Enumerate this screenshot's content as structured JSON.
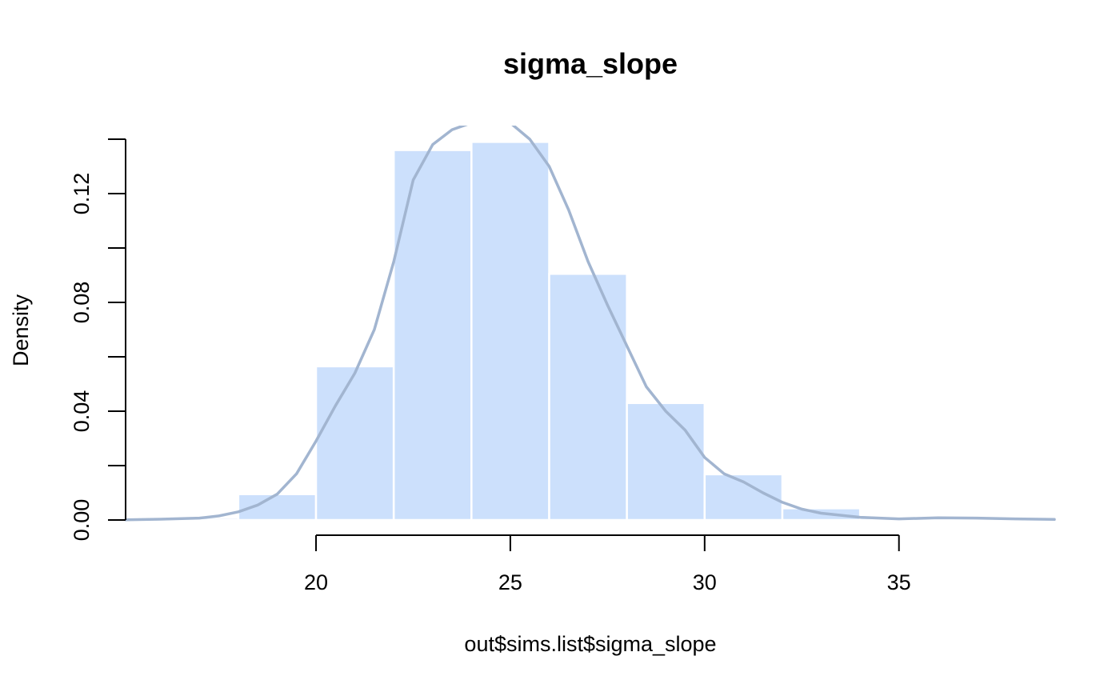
{
  "chart_data": {
    "type": "histogram",
    "title": "sigma_slope",
    "xlabel": "out$sims.list$sigma_slope",
    "ylabel": "Density",
    "xlim": [
      15.1,
      39.0
    ],
    "ylim": [
      0,
      0.14
    ],
    "x_ticks": [
      20,
      25,
      30,
      35
    ],
    "x_tick_labels": [
      "20",
      "25",
      "30",
      "35"
    ],
    "y_ticks": [
      0,
      0.02,
      0.04,
      0.06,
      0.08,
      0.1,
      0.12,
      0.14
    ],
    "y_tick_labels": [
      "0.00",
      "",
      "0.04",
      "",
      "0.08",
      "",
      "0.12",
      ""
    ],
    "bins": [
      {
        "start": 16,
        "end": 18,
        "density": 0.0008
      },
      {
        "start": 18,
        "end": 20,
        "density": 0.0095
      },
      {
        "start": 20,
        "end": 22,
        "density": 0.0565
      },
      {
        "start": 22,
        "end": 24,
        "density": 0.136
      },
      {
        "start": 24,
        "end": 26,
        "density": 0.139
      },
      {
        "start": 26,
        "end": 28,
        "density": 0.0905
      },
      {
        "start": 28,
        "end": 30,
        "density": 0.043
      },
      {
        "start": 30,
        "end": 32,
        "density": 0.0168
      },
      {
        "start": 32,
        "end": 34,
        "density": 0.0043
      },
      {
        "start": 34,
        "end": 36,
        "density": 0.0009
      }
    ],
    "density_curve": {
      "x": [
        15.1,
        16.0,
        17.0,
        17.5,
        18.0,
        18.5,
        19.0,
        19.5,
        20.0,
        20.5,
        21.0,
        21.5,
        22.0,
        22.5,
        23.0,
        23.5,
        24.0,
        24.5,
        25.0,
        25.5,
        26.0,
        26.5,
        27.0,
        27.5,
        28.0,
        28.5,
        29.0,
        29.5,
        30.0,
        30.5,
        31.0,
        31.5,
        32.0,
        32.5,
        33.0,
        34.0,
        35.0,
        36.0,
        37.0,
        38.0,
        39.0
      ],
      "y": [
        0.0001,
        0.0003,
        0.0007,
        0.0015,
        0.003,
        0.0055,
        0.0095,
        0.017,
        0.029,
        0.042,
        0.054,
        0.07,
        0.095,
        0.125,
        0.138,
        0.1435,
        0.146,
        0.148,
        0.146,
        0.14,
        0.13,
        0.114,
        0.095,
        0.079,
        0.064,
        0.049,
        0.04,
        0.033,
        0.023,
        0.017,
        0.014,
        0.01,
        0.0065,
        0.004,
        0.0025,
        0.001,
        0.0004,
        0.0008,
        0.0007,
        0.0004,
        0.0002
      ]
    },
    "colors": {
      "bar_fill": "#cce0fc",
      "bar_border": "#ffffff",
      "density_line": "#a2b5d0",
      "axis": "#000000"
    },
    "grid": false,
    "legend": "none"
  }
}
